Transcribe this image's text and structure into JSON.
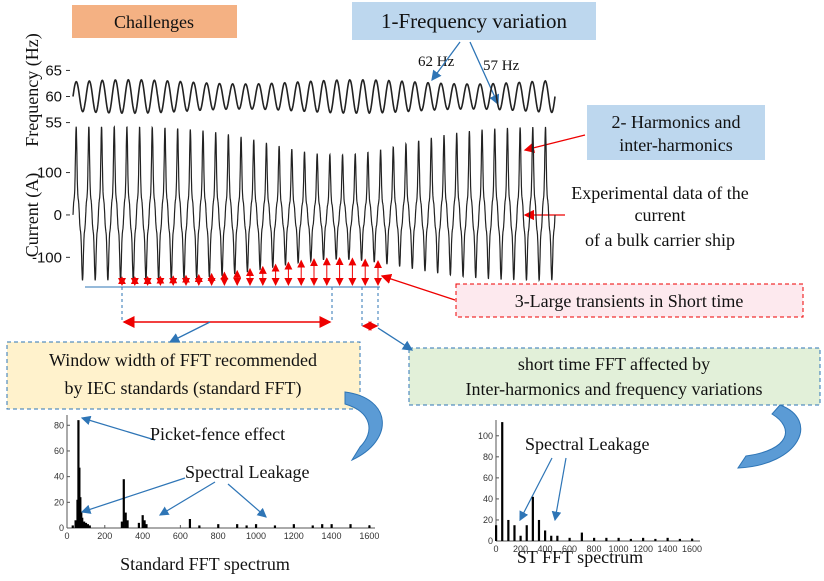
{
  "labels": {
    "challenges": "Challenges",
    "frequency_variation": "1-Frequency variation",
    "harmonics": [
      "2- Harmonics and",
      "inter-harmonics"
    ],
    "experimental": [
      "Experimental data of the",
      "current",
      "of a bulk carrier ship"
    ],
    "transients": "3-Large transients in Short time",
    "window_width": [
      "Window width of FFT recommended",
      "by IEC standards (standard FFT)"
    ],
    "short_time_fft": [
      "short time FFT affected by",
      "Inter-harmonics and frequency variations"
    ]
  },
  "frequency_plot": {
    "ylabel": "Frequency (Hz)",
    "ylim": [
      53,
      67
    ],
    "yticks": [
      55,
      60,
      65
    ],
    "annotations": [
      "62 Hz",
      "57 Hz"
    ]
  },
  "current_plot": {
    "ylabel": "Current (A)",
    "ylim": [
      -170,
      165
    ],
    "yticks": [
      {
        "value": -100,
        "label": "-100"
      },
      0,
      100
    ]
  },
  "spectra": [
    {
      "title": "Standard FFT spectrum",
      "xlim": [
        0,
        1630
      ],
      "ylim": [
        0,
        88
      ],
      "xticks": [
        0,
        200,
        400,
        600,
        800,
        1000,
        1200,
        1400,
        1600
      ],
      "yticks": [
        0,
        20,
        40,
        60,
        80
      ],
      "x": [
        30,
        45,
        55,
        60,
        65,
        70,
        75,
        80,
        90,
        100,
        110,
        120,
        290,
        300,
        310,
        320,
        380,
        400,
        410,
        420,
        650,
        700,
        800,
        900,
        950,
        1000,
        1100,
        1200,
        1300,
        1350,
        1400,
        1500,
        1600
      ],
      "values": [
        2,
        6,
        22,
        84,
        47,
        24,
        12,
        8,
        5,
        4,
        3,
        2,
        5,
        38,
        12,
        6,
        4,
        10,
        6,
        3,
        7,
        2,
        3,
        3,
        2,
        3,
        2,
        3,
        2,
        3,
        3,
        3,
        2
      ],
      "annotations": [
        "Picket-fence effect",
        "Spectral Leakage"
      ]
    },
    {
      "title": "ST FFT spectrum",
      "xlim": [
        0,
        1665
      ],
      "ylim": [
        0,
        115
      ],
      "xticks": [
        0,
        200,
        400,
        600,
        800,
        1000,
        1200,
        1400,
        1600
      ],
      "yticks": [
        0,
        20,
        40,
        60,
        80,
        100
      ],
      "x": [
        0,
        50,
        100,
        150,
        200,
        250,
        300,
        350,
        400,
        450,
        500,
        600,
        700,
        800,
        900,
        1000,
        1100,
        1200,
        1300,
        1400,
        1500,
        1600
      ],
      "values": [
        15,
        113,
        20,
        15,
        5,
        15,
        42,
        20,
        10,
        5,
        5,
        3,
        8,
        3,
        3,
        3,
        2,
        3,
        2,
        3,
        2,
        2
      ],
      "annotations": [
        "Spectral  Leakage"
      ]
    }
  ]
}
